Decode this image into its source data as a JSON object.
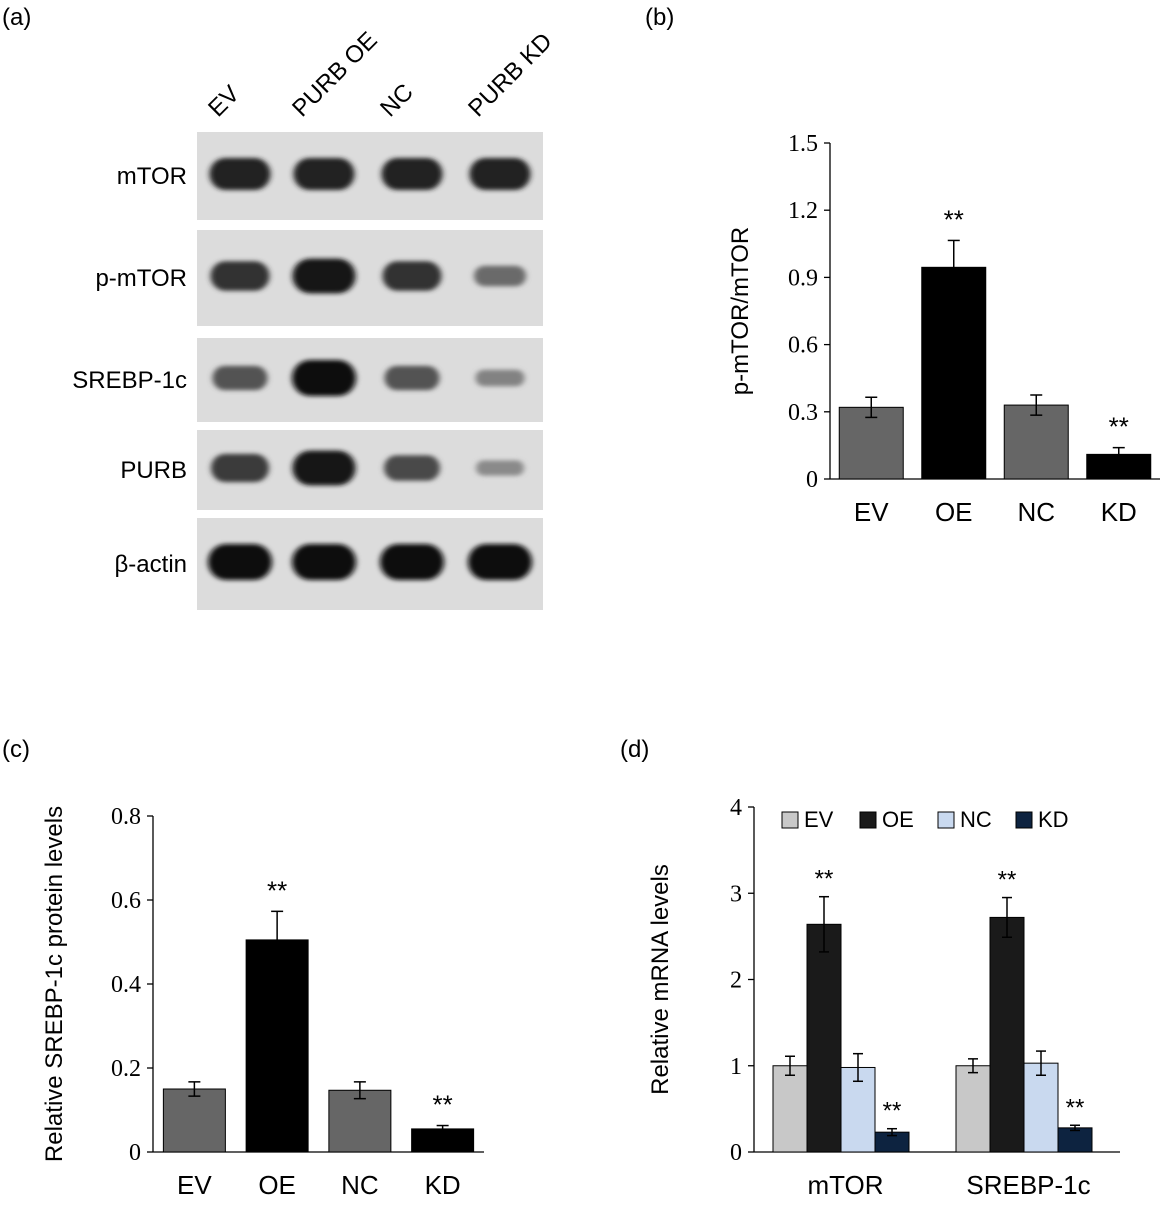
{
  "panels": {
    "a": {
      "letter": "(a)"
    },
    "b": {
      "letter": "(b)"
    },
    "c": {
      "letter": "(c)"
    },
    "d": {
      "letter": "(d)"
    }
  },
  "blot": {
    "lanes": [
      "EV",
      "PURB OE",
      "NC",
      "PURB KD"
    ],
    "rows": [
      {
        "label": "mTOR",
        "intensity": [
          0.85,
          0.85,
          0.85,
          0.85
        ]
      },
      {
        "label": "p-mTOR",
        "intensity": [
          0.75,
          0.95,
          0.75,
          0.4
        ]
      },
      {
        "label": "SREBP-1c",
        "intensity": [
          0.55,
          1.0,
          0.55,
          0.25
        ]
      },
      {
        "label": "PURB",
        "intensity": [
          0.7,
          0.95,
          0.6,
          0.2
        ]
      },
      {
        "label": "β-actin",
        "intensity": [
          1.0,
          1.0,
          1.0,
          1.0
        ]
      }
    ]
  },
  "chart_data": [
    {
      "id": "b",
      "type": "bar",
      "categories": [
        "EV",
        "OE",
        "NC",
        "KD"
      ],
      "values": [
        0.32,
        0.945,
        0.33,
        0.11
      ],
      "errors": [
        0.045,
        0.12,
        0.045,
        0.03
      ],
      "significance": [
        "",
        "**",
        "",
        "**"
      ],
      "ylabel": "p-mTOR/mTOR",
      "ylim": [
        0,
        1.5
      ],
      "yticks": [
        "0",
        "0.3",
        "0.6",
        "0.9",
        "1.2",
        "1.5"
      ],
      "bar_colors": [
        "#666666",
        "#000000",
        "#666666",
        "#000000"
      ],
      "grid": false
    },
    {
      "id": "c",
      "type": "bar",
      "categories": [
        "EV",
        "OE",
        "NC",
        "KD"
      ],
      "values": [
        0.15,
        0.505,
        0.147,
        0.055
      ],
      "errors": [
        0.017,
        0.068,
        0.02,
        0.008
      ],
      "significance": [
        "",
        "**",
        "",
        "**"
      ],
      "ylabel": "Relative SREBP-1c protein levels",
      "ylim": [
        0,
        0.8
      ],
      "yticks": [
        "0",
        "0.2",
        "0.4",
        "0.6",
        "0.8"
      ],
      "bar_colors": [
        "#666666",
        "#000000",
        "#666666",
        "#000000"
      ],
      "grid": false
    },
    {
      "id": "d",
      "type": "bar",
      "categories": [
        "mTOR",
        "SREBP-1c"
      ],
      "series": [
        {
          "name": "EV",
          "values": [
            1.0,
            1.0
          ],
          "errors": [
            0.11,
            0.08
          ],
          "color": "#c8c8c8",
          "significance": [
            "",
            ""
          ]
        },
        {
          "name": "OE",
          "values": [
            2.64,
            2.72
          ],
          "errors": [
            0.32,
            0.23
          ],
          "color": "#1a1a1a",
          "significance": [
            "**",
            "**"
          ]
        },
        {
          "name": "NC",
          "values": [
            0.98,
            1.03
          ],
          "errors": [
            0.16,
            0.14
          ],
          "color": "#c9d9ef",
          "significance": [
            "",
            ""
          ]
        },
        {
          "name": "KD",
          "values": [
            0.23,
            0.28
          ],
          "errors": [
            0.04,
            0.03
          ],
          "color": "#0d2340",
          "significance": [
            "**",
            "**"
          ]
        }
      ],
      "ylabel": "Relative mRNA levels",
      "ylim": [
        0,
        4
      ],
      "yticks": [
        "0",
        "1",
        "2",
        "3",
        "4"
      ],
      "legend": "top",
      "grid": false
    }
  ]
}
